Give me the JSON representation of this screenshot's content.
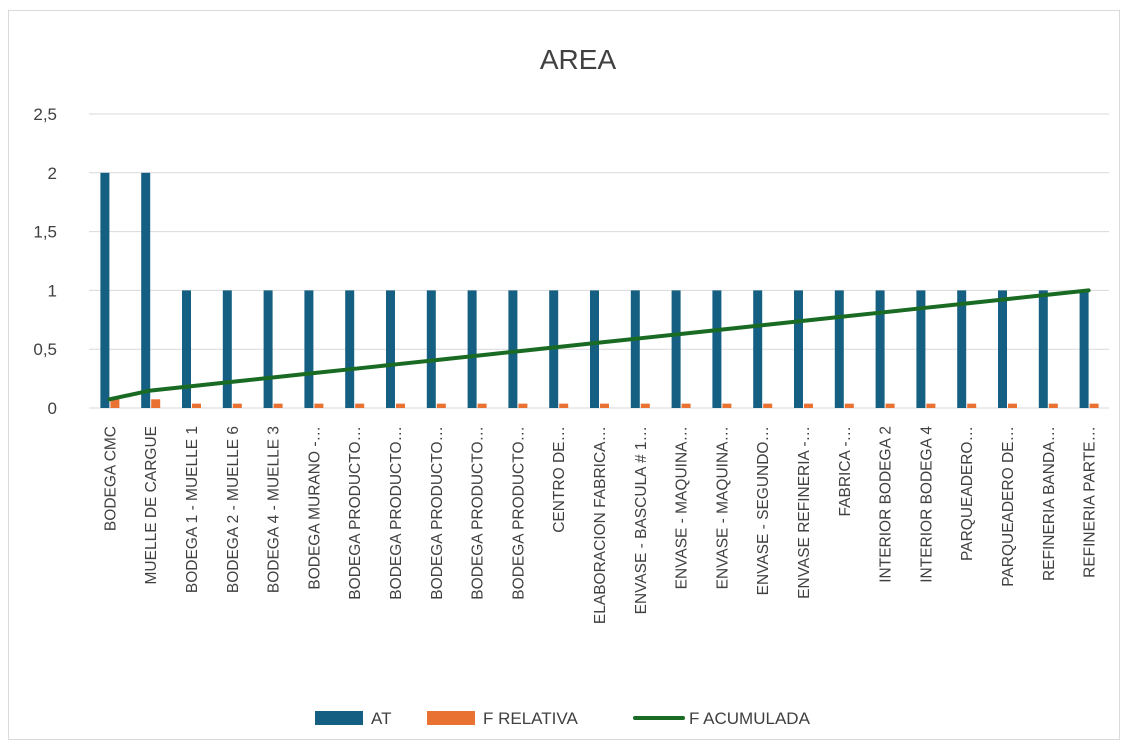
{
  "chart_data": {
    "type": "bar",
    "title": "AREA",
    "xlabel": "",
    "ylabel": "",
    "ylim": [
      0,
      2.5
    ],
    "yticks": [
      "0",
      "0,5",
      "1",
      "1,5",
      "2",
      "2,5"
    ],
    "grid": true,
    "legend_position": "bottom",
    "categories": [
      "BODEGA CMC",
      "MUELLE DE CARGUE",
      "BODEGA 1 - MUELLE 1",
      "BODEGA 2 - MUELLE 6",
      "BODEGA 4 - MUELLE 3",
      "BODEGA MURANO -…",
      "BODEGA PRODUCTO…",
      "BODEGA PRODUCTO…",
      "BODEGA PRODUCTO…",
      "BODEGA PRODUCTO…",
      "BODEGA PRODUCTO…",
      "CENTRO DE…",
      "ELABORACION FABRICA…",
      "ENVASE - BASCULA # 1…",
      "ENVASE - MAQUINA…",
      "ENVASE - MAQUINA…",
      "ENVASE - SEGUNDO…",
      "ENVASE REFINERIA -…",
      "FABRICA -…",
      "INTERIOR BODEGA 2",
      "INTERIOR BODEGA 4",
      "PARQUEADERO…",
      "PARQUEADERO DE…",
      "REFINERIA BANDA…",
      "REFINERIA PARTE…"
    ],
    "series": [
      {
        "name": "AT",
        "type": "bar",
        "color": "#156082",
        "values": [
          2,
          2,
          1,
          1,
          1,
          1,
          1,
          1,
          1,
          1,
          1,
          1,
          1,
          1,
          1,
          1,
          1,
          1,
          1,
          1,
          1,
          1,
          1,
          1,
          1
        ]
      },
      {
        "name": "F RELATIVA",
        "type": "bar",
        "color": "#e97132",
        "values": [
          0.0741,
          0.0741,
          0.037,
          0.037,
          0.037,
          0.037,
          0.037,
          0.037,
          0.037,
          0.037,
          0.037,
          0.037,
          0.037,
          0.037,
          0.037,
          0.037,
          0.037,
          0.037,
          0.037,
          0.037,
          0.037,
          0.037,
          0.037,
          0.037,
          0.037
        ]
      },
      {
        "name": "F ACUMULADA",
        "type": "line",
        "color": "#196b24",
        "values": [
          0.0741,
          0.1481,
          0.1852,
          0.2222,
          0.2593,
          0.2963,
          0.3333,
          0.3704,
          0.4074,
          0.4444,
          0.4815,
          0.5185,
          0.5556,
          0.5926,
          0.6296,
          0.6667,
          0.7037,
          0.7407,
          0.7778,
          0.8148,
          0.8519,
          0.8889,
          0.9259,
          0.963,
          1.0
        ]
      }
    ]
  }
}
